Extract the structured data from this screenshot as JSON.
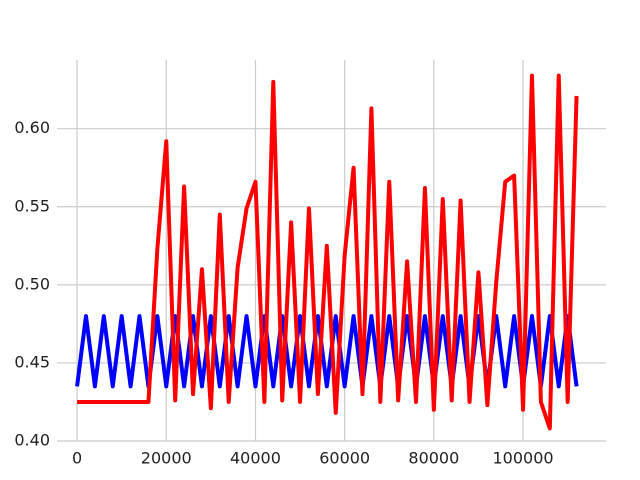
{
  "chart_data": {
    "type": "line",
    "x": [
      0,
      2000,
      4000,
      6000,
      8000,
      10000,
      12000,
      14000,
      16000,
      18000,
      20000,
      22000,
      24000,
      26000,
      28000,
      30000,
      32000,
      34000,
      36000,
      38000,
      40000,
      42000,
      44000,
      46000,
      48000,
      50000,
      52000,
      54000,
      56000,
      58000,
      60000,
      62000,
      64000,
      66000,
      68000,
      70000,
      72000,
      74000,
      76000,
      78000,
      80000,
      82000,
      84000,
      86000,
      88000,
      90000,
      92000,
      94000,
      96000,
      98000,
      100000,
      102000,
      104000,
      106000,
      108000,
      110000,
      112000
    ],
    "series": [
      {
        "color": "#0000ff",
        "values": [
          0.435,
          0.48,
          0.435,
          0.48,
          0.435,
          0.48,
          0.435,
          0.48,
          0.435,
          0.48,
          0.435,
          0.48,
          0.435,
          0.48,
          0.435,
          0.48,
          0.435,
          0.48,
          0.435,
          0.48,
          0.435,
          0.48,
          0.435,
          0.48,
          0.435,
          0.48,
          0.435,
          0.48,
          0.435,
          0.48,
          0.435,
          0.48,
          0.435,
          0.48,
          0.435,
          0.48,
          0.435,
          0.48,
          0.435,
          0.48,
          0.435,
          0.48,
          0.435,
          0.48,
          0.435,
          0.48,
          0.435,
          0.48,
          0.435,
          0.48,
          0.435,
          0.48,
          0.435,
          0.48,
          0.435,
          0.48,
          0.435
        ]
      },
      {
        "color": "#ff0000",
        "values": [
          0.425,
          0.425,
          0.425,
          0.425,
          0.425,
          0.425,
          0.425,
          0.425,
          0.425,
          0.523,
          0.592,
          0.426,
          0.563,
          0.43,
          0.51,
          0.421,
          0.545,
          0.425,
          0.511,
          0.549,
          0.566,
          0.425,
          0.63,
          0.426,
          0.54,
          0.425,
          0.549,
          0.43,
          0.525,
          0.418,
          0.519,
          0.575,
          0.43,
          0.613,
          0.425,
          0.566,
          0.426,
          0.515,
          0.425,
          0.562,
          0.42,
          0.555,
          0.426,
          0.554,
          0.425,
          0.508,
          0.423,
          0.502,
          0.566,
          0.57,
          0.42,
          0.634,
          0.425,
          0.408,
          0.634,
          0.425,
          0.621
        ]
      }
    ],
    "xlim": [
      -4500,
      118600
    ],
    "ylim": [
      0.4,
      0.644
    ],
    "xticks": [
      0,
      20000,
      40000,
      60000,
      80000,
      100000
    ],
    "yticks": [
      {
        "value": 0.4,
        "label": "0.40"
      },
      0.45,
      {
        "value": 0.5,
        "label": "0.50"
      },
      0.55,
      {
        "value": 0.6,
        "label": "0.60"
      }
    ],
    "grid": true
  }
}
